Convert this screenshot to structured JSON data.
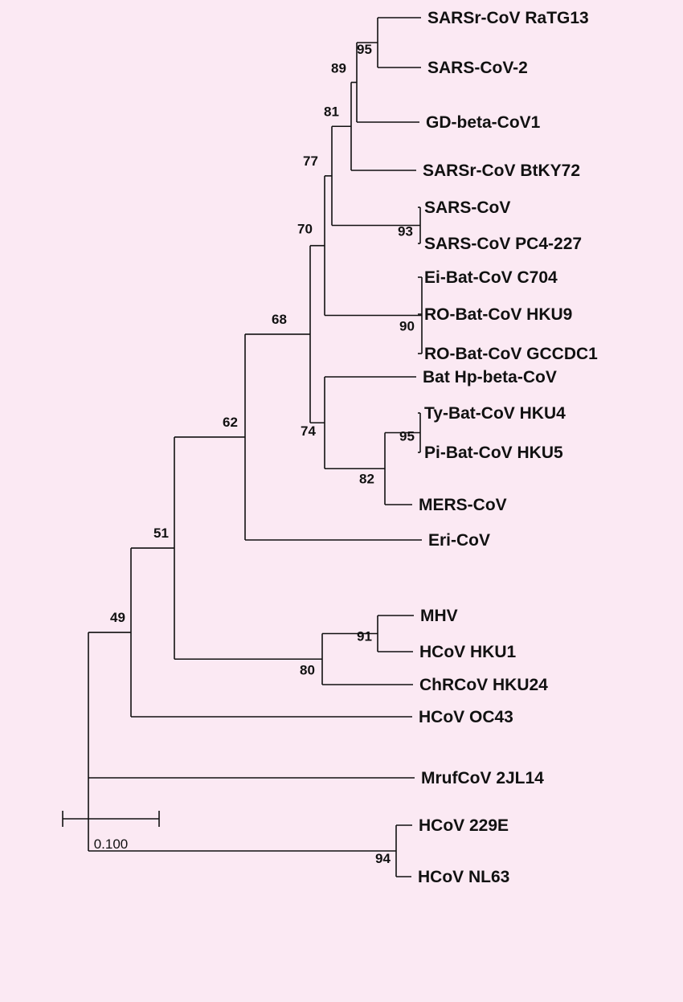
{
  "colors": {
    "background": "#fbe9f3",
    "default": "#111111",
    "red": "#ee1c25",
    "green": "#33dd22"
  },
  "taxa": [
    {
      "id": "ratg13",
      "label": "SARSr-CoV RaTG13",
      "color": "default"
    },
    {
      "id": "sars2",
      "label": "SARS-CoV-2",
      "color": "red"
    },
    {
      "id": "gd",
      "label": "GD-beta-CoV1",
      "color": "default"
    },
    {
      "id": "btky72",
      "label": "SARSr-CoV BtKY72",
      "color": "default"
    },
    {
      "id": "sars",
      "label": "SARS-CoV",
      "color": "red"
    },
    {
      "id": "pc4",
      "label": "SARS-CoV PC4-227",
      "color": "default"
    },
    {
      "id": "c704",
      "label": "Ei-Bat-CoV C704",
      "color": "default"
    },
    {
      "id": "hku9",
      "label": "RO-Bat-CoV HKU9",
      "color": "default"
    },
    {
      "id": "gccdc1",
      "label": "RO-Bat-CoV GCCDC1",
      "color": "default"
    },
    {
      "id": "bathp",
      "label": "Bat Hp-beta-CoV",
      "color": "default"
    },
    {
      "id": "hku4",
      "label": "Ty-Bat-CoV HKU4",
      "color": "default"
    },
    {
      "id": "hku5",
      "label": "Pi-Bat-CoV HKU5",
      "color": "default"
    },
    {
      "id": "mers",
      "label": "MERS-CoV",
      "color": "red"
    },
    {
      "id": "eri",
      "label": "Eri-CoV",
      "color": "default"
    },
    {
      "id": "mhv",
      "label": "MHV",
      "color": "default"
    },
    {
      "id": "hku1",
      "label": "HCoV HKU1",
      "color": "green"
    },
    {
      "id": "hku24",
      "label": "ChRCoV HKU24",
      "color": "default"
    },
    {
      "id": "oc43",
      "label": "HCoV OC43",
      "color": "green"
    },
    {
      "id": "mruf",
      "label": "MrufCoV 2JL14",
      "color": "default"
    },
    {
      "id": "e229",
      "label": "HCoV 229E",
      "color": "green"
    },
    {
      "id": "nl63",
      "label": "HCoV NL63",
      "color": "green"
    }
  ],
  "tree": "((((((((((ratg13,sars2)95,gd)89,btky72)81,(sars,pc4)93)77,(c704,hku9,gccdc1)90)70,(bathp,((hku4,hku5)95,mers)82)74)68,eri)62,((mhv,hku1)91,hku24)80)51,oc43)49,mruf,(e229,nl63)94)",
  "scale_bar": {
    "label": "0.100",
    "length": 0.1
  }
}
